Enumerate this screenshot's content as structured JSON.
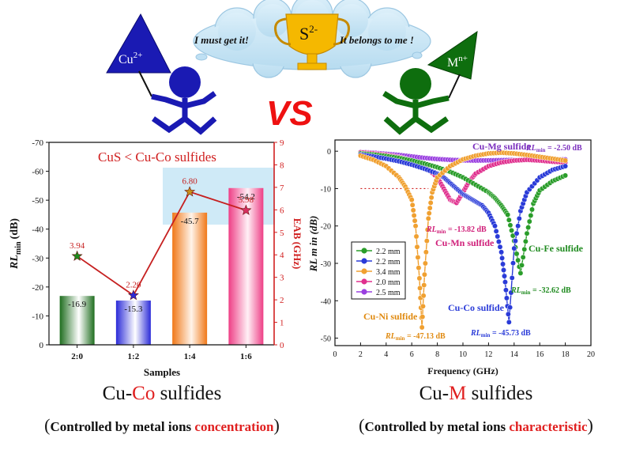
{
  "banner": {
    "cloud_text_left": "I  must get it!",
    "cloud_text_right": "It belongs to me !",
    "trophy_label": "S",
    "trophy_sup": "2-",
    "left_flag_label": "Cu",
    "left_flag_sup": "2+",
    "right_flag_label": "M",
    "right_flag_sup": "n+",
    "vs_text": "VS",
    "colors": {
      "left": "#1a1ab3",
      "right": "#0e6e0e",
      "vs": "#ee1111",
      "cloud": "#c8e4f4",
      "trophy": "#f5b800"
    }
  },
  "chart_data": [
    {
      "type": "bar",
      "title": "CuS < Cu-Co sulfides",
      "xlabel": "Samples",
      "ylabel": "RL",
      "ylabel_sub": "min",
      "ylabel_unit": "(dB)",
      "ylabel_right": "EAB (GHz)",
      "categories": [
        "2:0",
        "1:2",
        "1:4",
        "1:6"
      ],
      "series": [
        {
          "values": [
            -16.9,
            -15.3,
            -45.7,
            -54.2
          ],
          "value_labels": [
            "-16.9",
            "-15.3",
            "-45.7",
            "-54.2"
          ]
        },
        {
          "values": [
            3.94,
            2.2,
            6.8,
            5.98
          ],
          "value_labels": [
            "3.94",
            "2.20",
            "6.80",
            "5.98"
          ]
        }
      ],
      "ylim": [
        0,
        -70
      ],
      "ylim_right": [
        0,
        9
      ],
      "yticks": [
        "0",
        "-10",
        "-20",
        "-30",
        "-40",
        "-50",
        "-60",
        "-70"
      ],
      "yticks_right": [
        "0",
        "1",
        "2",
        "3",
        "4",
        "5",
        "6",
        "7",
        "8",
        "9"
      ],
      "bar_colors": [
        "#1f7a1f",
        "#2b2bd8",
        "#f08020",
        "#ee3f86"
      ],
      "line_color": "#c62020",
      "highlight_color": "#a8d8f0",
      "caption": "Cu-Co sulfides",
      "caption_parts": [
        "Cu-",
        "Co",
        " sulfides"
      ],
      "subcaption_parts": [
        "(",
        "Controlled by metal ions ",
        "concentration",
        ")"
      ]
    },
    {
      "type": "line",
      "xlabel": "Frequency (GHz)",
      "ylabel": "RL m in  (dB)",
      "xlim": [
        0,
        20
      ],
      "ylim": [
        -52,
        3
      ],
      "xticks": [
        "0",
        "2",
        "4",
        "6",
        "8",
        "10",
        "12",
        "14",
        "16",
        "18",
        "20"
      ],
      "yticks": [
        "0",
        "-10",
        "-20",
        "-30",
        "-40",
        "-50"
      ],
      "threshold": -10,
      "series": [
        {
          "name": "2.2 mm",
          "color": "#2a9d2a",
          "x": [
            2,
            3,
            4,
            5,
            6,
            7,
            8,
            9,
            10,
            11,
            12,
            12.5,
            13,
            13.5,
            14,
            14.5,
            15,
            15.5,
            16,
            17,
            18
          ],
          "y": [
            -0.6,
            -0.9,
            -1.3,
            -1.8,
            -2.5,
            -3.3,
            -4.3,
            -5.5,
            -7,
            -9,
            -11,
            -12.5,
            -14.5,
            -17,
            -24,
            -32.62,
            -22,
            -14,
            -10.5,
            -8,
            -6.5
          ]
        },
        {
          "name": "2.2 mm",
          "color": "#2a3bd8",
          "x": [
            2,
            3,
            4,
            5,
            6,
            7,
            8,
            8.5,
            9,
            9.5,
            10,
            10.5,
            11,
            11.5,
            12,
            12.5,
            13,
            13.3,
            13.6,
            14,
            14.5,
            15,
            16,
            17,
            18
          ],
          "y": [
            -0.9,
            -1.4,
            -2,
            -2.7,
            -3.6,
            -4.7,
            -6,
            -7,
            -8.5,
            -10,
            -11.5,
            -12.5,
            -13.5,
            -14.5,
            -16.5,
            -20,
            -27,
            -35,
            -45.73,
            -26,
            -16,
            -11,
            -7,
            -5,
            -4
          ]
        },
        {
          "name": "3.4 mm",
          "color": "#f0a030",
          "x": [
            2,
            3,
            4,
            5,
            5.5,
            6,
            6.3,
            6.6,
            6.8,
            7,
            7.3,
            7.6,
            8,
            9,
            10,
            11,
            12,
            13,
            14,
            15,
            16,
            17,
            18
          ],
          "y": [
            -1.2,
            -2.3,
            -4,
            -7,
            -9.5,
            -13,
            -20,
            -34,
            -47.13,
            -33,
            -18,
            -11,
            -7,
            -4,
            -2.2,
            -1.2,
            -0.6,
            -0.4,
            -0.6,
            -1,
            -1.5,
            -2,
            -2.5
          ]
        },
        {
          "name": "2.0 mm",
          "color": "#e0308e",
          "x": [
            2,
            3,
            4,
            5,
            6,
            7,
            8,
            8.5,
            9,
            9.5,
            10,
            10.5,
            11,
            12,
            13,
            14,
            15,
            16,
            17,
            18
          ],
          "y": [
            -0.3,
            -0.6,
            -1,
            -1.6,
            -2.5,
            -4,
            -7,
            -10,
            -13,
            -13.82,
            -11,
            -8,
            -6,
            -4,
            -3,
            -2.5,
            -2.3,
            -2.5,
            -2.8,
            -3
          ]
        },
        {
          "name": "2.5 mm",
          "color": "#9a40e0",
          "x": [
            2,
            3,
            4,
            5,
            6,
            7,
            8,
            9,
            10,
            11,
            12,
            13,
            14,
            15,
            16,
            17,
            18
          ],
          "y": [
            -0.2,
            -0.4,
            -0.7,
            -1,
            -1.4,
            -1.8,
            -2.1,
            -2.3,
            -2.45,
            -2.5,
            -2.45,
            -2.4,
            -2.35,
            -2.3,
            -2.25,
            -2.2,
            -2.2
          ]
        }
      ],
      "annotations": [
        {
          "text": "Cu-Mg sulfide",
          "color": "#7b2fbe"
        },
        {
          "text_prefix": "RL",
          "text_sub": "min",
          "text": " = -2.50 dB",
          "color": "#7b2fbe"
        },
        {
          "text_prefix": "RL",
          "text_sub": "min",
          "text": " = -13.82 dB",
          "color": "#d0207a"
        },
        {
          "text": "Cu-Mn sulfide",
          "color": "#d0207a"
        },
        {
          "text": "Cu-Fe sulfide",
          "color": "#1e8a1e"
        },
        {
          "text_prefix": "RL",
          "text_sub": "min",
          "text": " = -32.62 dB",
          "color": "#1e8a1e"
        },
        {
          "text": "Cu-Co sulfide",
          "color": "#2a3bd8"
        },
        {
          "text_prefix": "RL",
          "text_sub": "min",
          "text": " = -45.73 dB",
          "color": "#2a3bd8"
        },
        {
          "text": "Cu-Ni sulfide",
          "color": "#e08a10"
        },
        {
          "text_prefix": "RL",
          "text_sub": "min",
          "text": " = -47.13 dB",
          "color": "#e08a10"
        }
      ],
      "caption_parts": [
        "Cu-",
        "M",
        " sulfides"
      ],
      "subcaption_parts": [
        "(",
        "Controlled by metal ions ",
        "characteristic",
        ")"
      ]
    }
  ]
}
